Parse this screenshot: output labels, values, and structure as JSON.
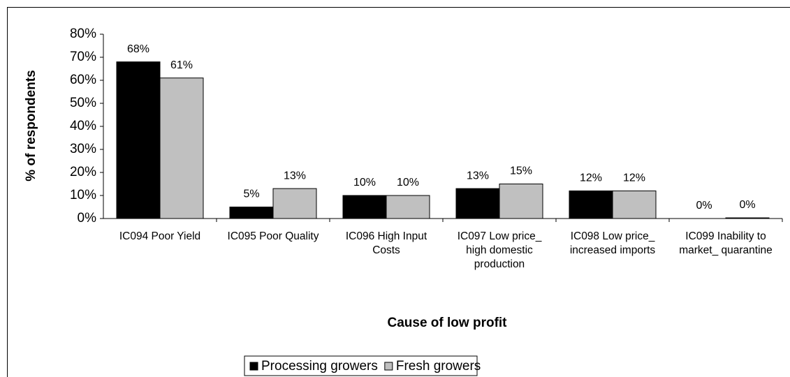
{
  "chart_data": {
    "type": "bar",
    "xlabel": "Cause of low profit",
    "ylabel": "% of respondents",
    "categories": [
      "IC094  Poor Yield",
      "IC095  Poor Quality",
      "IC096  High Input Costs",
      "IC097  Low price_ high domestic production",
      "IC098  Low price_ increased imports",
      "IC099  Inability to market_ quarantine"
    ],
    "series": [
      {
        "name": "Processing growers",
        "color": "#000000",
        "values": [
          68,
          5,
          10,
          13,
          12,
          0
        ],
        "value_labels": [
          "68%",
          "5%",
          "10%",
          "13%",
          "12%",
          "0%"
        ]
      },
      {
        "name": "Fresh growers",
        "color": "#c0c0c0",
        "values": [
          61,
          13,
          10,
          15,
          12,
          0.3
        ],
        "value_labels": [
          "61%",
          "13%",
          "10%",
          "15%",
          "12%",
          "0%"
        ]
      }
    ],
    "ylim": [
      0,
      80
    ],
    "yticks": [
      {
        "value": 0,
        "label": "0%"
      },
      {
        "value": 10,
        "label": "10%"
      },
      {
        "value": 20,
        "label": "20%"
      },
      {
        "value": 30,
        "label": "30%"
      },
      {
        "value": 40,
        "label": "40%"
      },
      {
        "value": 50,
        "label": "50%"
      },
      {
        "value": 60,
        "label": "60%"
      },
      {
        "value": 70,
        "label": "70%"
      },
      {
        "value": 80,
        "label": "80%"
      }
    ],
    "legend": "bottom"
  }
}
